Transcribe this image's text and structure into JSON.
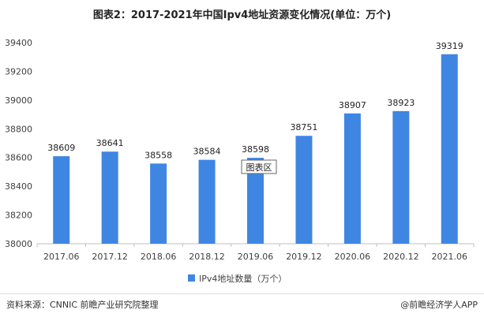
{
  "title": "图表2：2017-2021年中国Ipv4地址资源变化情况(单位：万个)",
  "source": "资料来源：CNNIC 前瞻产业研究院整理",
  "brand": "@前瞻经济学人APP",
  "tooltip": "图表区",
  "colors": {
    "bar": "#3f86e3",
    "axis": "#bfbfbf",
    "text": "#404040"
  },
  "chart_data": {
    "type": "bar",
    "categories": [
      "2017.06",
      "2017.12",
      "2018.06",
      "2018.12",
      "2019.06",
      "2019.12",
      "2020.06",
      "2020.12",
      "2021.06"
    ],
    "series": [
      {
        "name": "IPv4地址数量（万个）",
        "values": [
          38609,
          38641,
          38558,
          38584,
          38598,
          38751,
          38907,
          38923,
          39319
        ]
      }
    ],
    "ylim": [
      38000,
      39400
    ],
    "yticks": [
      38000,
      38200,
      38400,
      38600,
      38800,
      39000,
      39200,
      39400
    ],
    "legend_position": "bottom"
  }
}
